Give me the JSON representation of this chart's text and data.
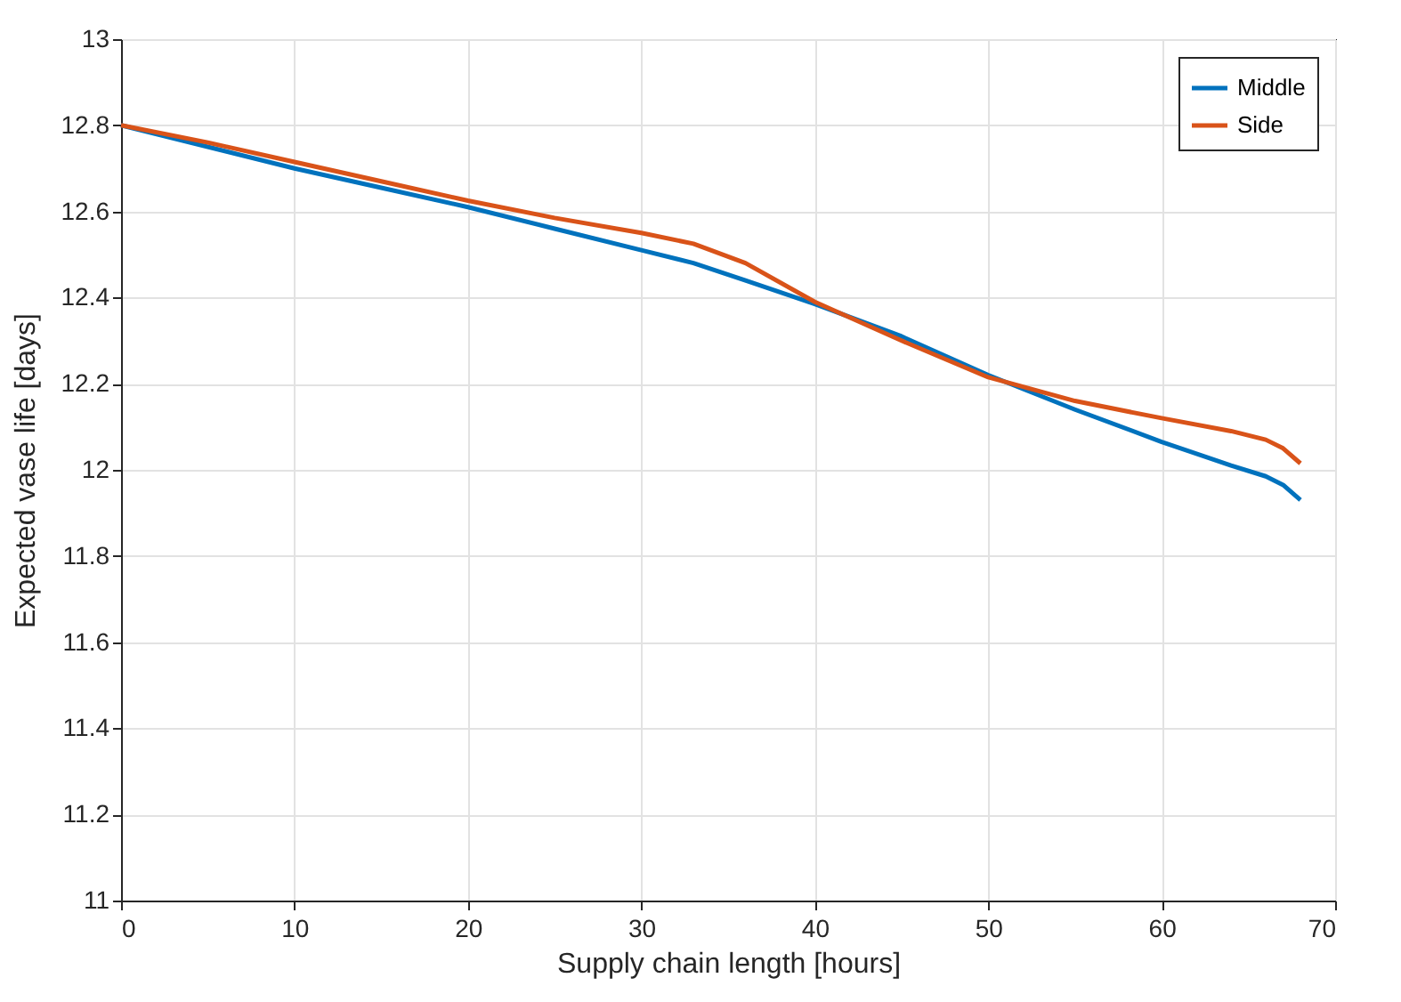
{
  "chart_data": {
    "type": "line",
    "xlabel": "Supply chain length [hours]",
    "ylabel": "Expected vase life [days]",
    "xlim": [
      0,
      70
    ],
    "ylim": [
      11,
      13
    ],
    "xticks": [
      0,
      10,
      20,
      30,
      40,
      50,
      60,
      70
    ],
    "yticks": [
      11,
      11.2,
      11.4,
      11.6,
      11.8,
      12,
      12.2,
      12.4,
      12.6,
      12.8,
      13
    ],
    "grid": true,
    "legend": "top right",
    "line_style": "solid",
    "series": [
      {
        "name": "Middle",
        "color": "#0072bd",
        "x": [
          0,
          5,
          10,
          15,
          20,
          25,
          30,
          33,
          36,
          40,
          45,
          50,
          55,
          60,
          64,
          66,
          67,
          68
        ],
        "values": [
          12.8,
          12.75,
          12.7,
          12.655,
          12.61,
          12.56,
          12.51,
          12.48,
          12.44,
          12.385,
          12.31,
          12.22,
          12.14,
          12.065,
          12.01,
          11.985,
          11.965,
          11.93
        ]
      },
      {
        "name": "Side",
        "color": "#d95319",
        "x": [
          0,
          5,
          10,
          15,
          20,
          25,
          30,
          33,
          36,
          40,
          45,
          50,
          55,
          60,
          64,
          66,
          67,
          68
        ],
        "values": [
          12.8,
          12.76,
          12.715,
          12.67,
          12.625,
          12.585,
          12.55,
          12.525,
          12.48,
          12.39,
          12.3,
          12.215,
          12.16,
          12.12,
          12.09,
          12.07,
          12.05,
          12.015
        ]
      }
    ]
  }
}
